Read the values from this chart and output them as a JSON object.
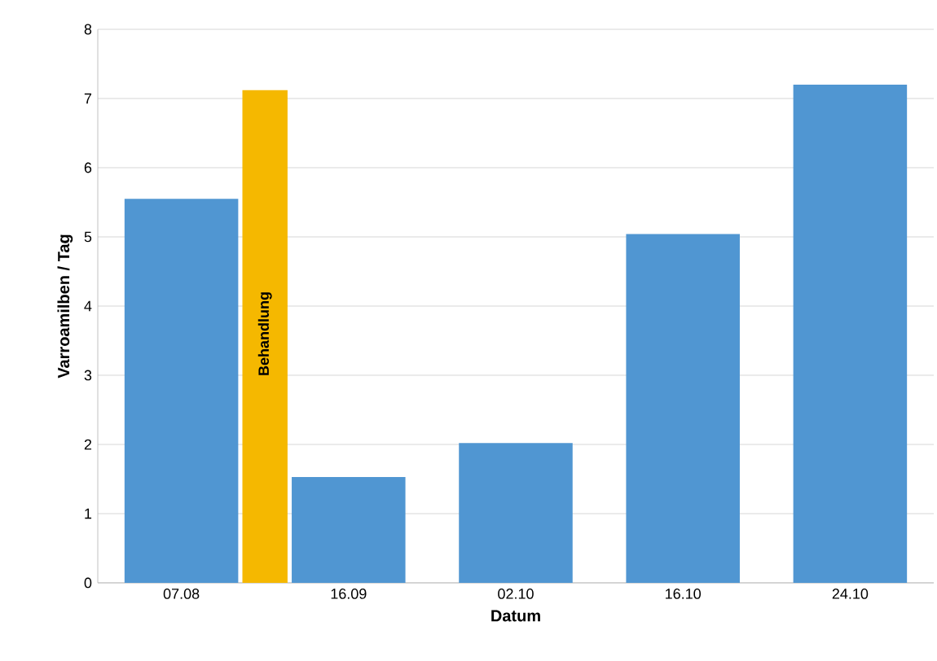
{
  "chart_data": {
    "type": "bar",
    "xlabel": "Datum",
    "ylabel": "Varroamilben / Tag",
    "categories": [
      "07.08",
      "16.09",
      "02.10",
      "16.10",
      "24.10"
    ],
    "values": [
      5.55,
      1.53,
      2.02,
      5.04,
      7.2
    ],
    "color": "#5096d2",
    "ylim": [
      0,
      8
    ],
    "yticks": [
      0,
      1,
      2,
      3,
      4,
      5,
      6,
      7,
      8
    ],
    "grid": "y",
    "bands": [
      {
        "axis": "x",
        "from": "07.08",
        "to": "16.09",
        "label": "Behandlung",
        "color": "#f5b800"
      }
    ]
  }
}
